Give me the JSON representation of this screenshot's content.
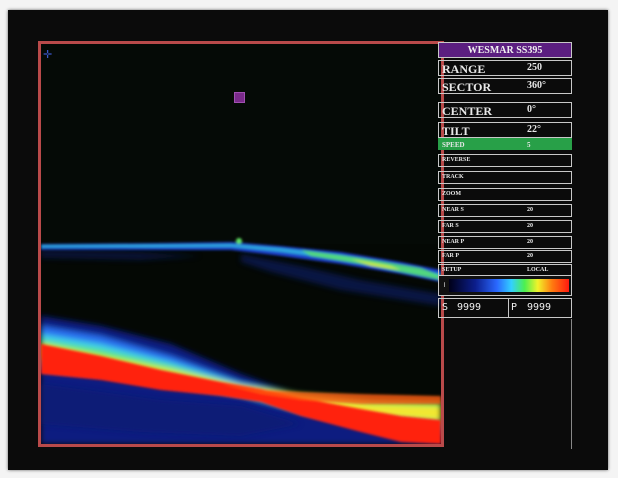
{
  "panel": {
    "title": "WESMAR SS395",
    "range": {
      "label": "RANGE",
      "value": "250"
    },
    "sector": {
      "label": "SECTOR",
      "value": "360°"
    },
    "center": {
      "label": "CENTER",
      "value": "0°"
    },
    "tilt": {
      "label": "TILT",
      "value": "22°"
    },
    "speed": {
      "label": "SPEED",
      "value": "5"
    },
    "reverse": {
      "label": "REVERSE"
    },
    "track": {
      "label": "TRACK"
    },
    "zoom": {
      "label": "ZOOM"
    },
    "near_s": {
      "label": "NEAR S",
      "value": "20"
    },
    "far_s": {
      "label": "FAR S",
      "value": "20"
    },
    "near_p": {
      "label": "NEAR P",
      "value": "20"
    },
    "far_p": {
      "label": "FAR P",
      "value": "20"
    },
    "setup": {
      "label": "SETUP",
      "value": "LOCAL"
    },
    "depth_left": {
      "prefix": "S",
      "value": "9999"
    },
    "depth_right": {
      "prefix": "P",
      "value": "9999"
    }
  },
  "colors": {
    "title_bar": "#5b1e80",
    "speed_highlight": "#28a048",
    "view_border": "#b94a4a"
  },
  "icons": {
    "target_marker": "square-marker-icon",
    "colorbar": "color-scale-bar"
  }
}
